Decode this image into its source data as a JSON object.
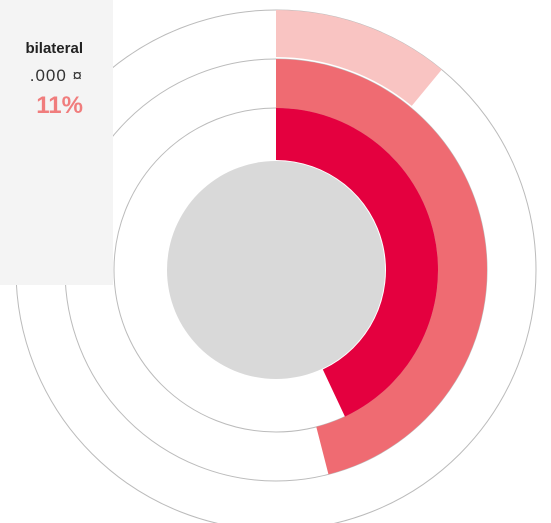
{
  "chart_data": {
    "type": "radialBar",
    "series": [
      {
        "color": "#f9c4c2",
        "values": [
          11
        ]
      },
      {
        "color": "#ef6b72",
        "values": [
          46
        ]
      },
      {
        "color": "#e4003f",
        "values": [
          43
        ]
      }
    ],
    "ylim": [
      0,
      100
    ],
    "tooltip": {
      "title": "bilateral",
      "value": ".000 ¤",
      "percent": "11%",
      "color": "#f07d7d"
    }
  }
}
